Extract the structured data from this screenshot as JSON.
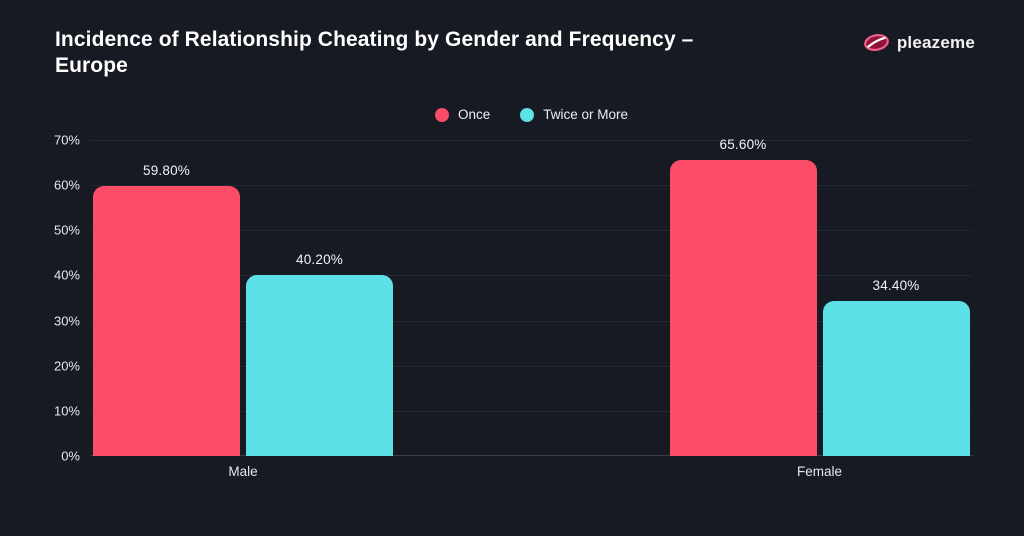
{
  "header": {
    "title": "Incidence of Relationship Cheating by Gender and Frequency –\nEurope",
    "brand": "pleazeme"
  },
  "colors": {
    "background": "#171a22",
    "once": "#fb4d67",
    "twice_or_more": "#5ce1e6",
    "gridline": "#232731",
    "axis_line": "#3b3f49",
    "text": "#ecedef",
    "logo_lips_fill": "#8f1238",
    "logo_lips_outline": "#ef5f8a"
  },
  "chart_data": {
    "type": "bar",
    "title": "Incidence of Relationship Cheating by Gender and Frequency – Europe",
    "categories": [
      "Male",
      "Female"
    ],
    "series": [
      {
        "name": "Once",
        "color": "#fb4d67",
        "values": [
          59.8,
          65.6
        ],
        "labels": [
          "59.80%",
          "65.60%"
        ]
      },
      {
        "name": "Twice or More",
        "color": "#5ce1e6",
        "values": [
          40.2,
          34.4
        ],
        "labels": [
          "40.20%",
          "34.40%"
        ]
      }
    ],
    "xlabel": "",
    "ylabel": "",
    "ylim": [
      0,
      70
    ],
    "ytick_step": 10,
    "ytick_suffix": "%",
    "grid": "horizontal",
    "legend_position": "top-center"
  }
}
